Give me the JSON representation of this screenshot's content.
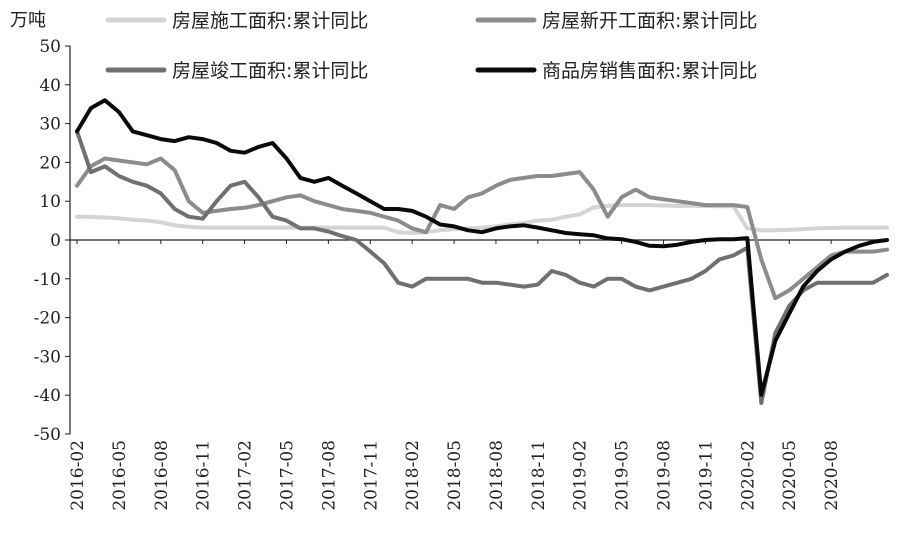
{
  "chart_data": {
    "type": "line",
    "unit_label": "万吨",
    "ylim": [
      -50,
      50
    ],
    "y_ticks": [
      50,
      40,
      30,
      20,
      10,
      0,
      -10,
      -20,
      -30,
      -40,
      -50
    ],
    "x_start": "2016-02",
    "x_end": "2020-11",
    "x_tick_labels": [
      "2016-02",
      "2016-05",
      "2016-08",
      "2016-11",
      "2017-02",
      "2017-05",
      "2017-08",
      "2017-11",
      "2018-02",
      "2018-05",
      "2018-08",
      "2018-11",
      "2019-02",
      "2019-05",
      "2019-08",
      "2019-11",
      "2020-02",
      "2020-05",
      "2020-08"
    ],
    "legend_position": "top",
    "series": [
      {
        "name": "房屋施工面积:累计同比",
        "color": "#d4d4d4",
        "values": [
          6,
          6,
          5.8,
          5.6,
          5.2,
          5,
          4.6,
          3.8,
          3.4,
          3.2,
          3.2,
          3.2,
          3.2,
          3.2,
          3.2,
          3.2,
          3.2,
          3.2,
          3.2,
          3.2,
          3.2,
          3.2,
          3.2,
          2,
          1.8,
          2,
          2.5,
          2.8,
          3,
          3.2,
          3.5,
          4,
          4.4,
          5,
          5.2,
          6,
          6.6,
          8.4,
          8.8,
          9,
          9,
          9,
          8.9,
          8.8,
          8.8,
          8.8,
          8.7,
          8.7,
          3,
          2.5,
          2.5,
          2.6,
          2.8,
          3,
          3.1,
          3.2,
          3.2,
          3.2,
          3.2
        ]
      },
      {
        "name": "房屋新开工面积:累计同比",
        "color": "#8c8c8c",
        "values": [
          14,
          19,
          21,
          20.5,
          20,
          19.5,
          21,
          18,
          10,
          7,
          7.5,
          8,
          8.3,
          9,
          10,
          11,
          11.5,
          10,
          9,
          8,
          7.5,
          7,
          6,
          5,
          3,
          2,
          9,
          8,
          11,
          12,
          14,
          15.5,
          16,
          16.5,
          16.5,
          17,
          17.5,
          13,
          6,
          11,
          13,
          11,
          10.5,
          10,
          9.5,
          9,
          9,
          9,
          8.5,
          -5,
          -15,
          -13,
          -10,
          -7,
          -4,
          -3,
          -3,
          -3,
          -2.5
        ]
      },
      {
        "name": "房屋竣工面积:累计同比",
        "color": "#707070",
        "values": [
          28,
          17.5,
          19,
          16.5,
          15,
          14,
          12,
          8,
          6,
          5.5,
          10,
          14,
          15,
          11,
          6,
          5,
          3,
          3,
          2.2,
          1,
          0,
          -3,
          -6,
          -11,
          -12,
          -10,
          -10,
          -10,
          -10,
          -11,
          -11,
          -11.5,
          -12,
          -11.5,
          -8,
          -9,
          -11,
          -12,
          -10,
          -10,
          -12,
          -13,
          -12,
          -11,
          -10,
          -8,
          -5,
          -4,
          -2,
          -42,
          -24,
          -17,
          -13,
          -11,
          -11,
          -11,
          -11,
          -11,
          -9
        ]
      },
      {
        "name": "商品房销售面积:累计同比",
        "color": "#0a0a0a",
        "values": [
          28,
          34,
          36,
          33,
          28,
          27,
          26,
          25.5,
          26.5,
          26,
          25,
          23,
          22.5,
          24,
          25,
          21,
          16,
          15,
          16,
          14,
          12,
          10,
          8,
          8,
          7.5,
          6,
          4,
          3.5,
          2.5,
          2,
          3,
          3.5,
          3.8,
          3.2,
          2.5,
          1.8,
          1.5,
          1.2,
          0.4,
          0.2,
          -0.5,
          -1.5,
          -1.6,
          -1.2,
          -0.5,
          0,
          0.2,
          0.2,
          0.5,
          -39.9,
          -26,
          -19,
          -12,
          -8,
          -5,
          -3,
          -1.5,
          -0.5,
          0
        ]
      }
    ]
  }
}
